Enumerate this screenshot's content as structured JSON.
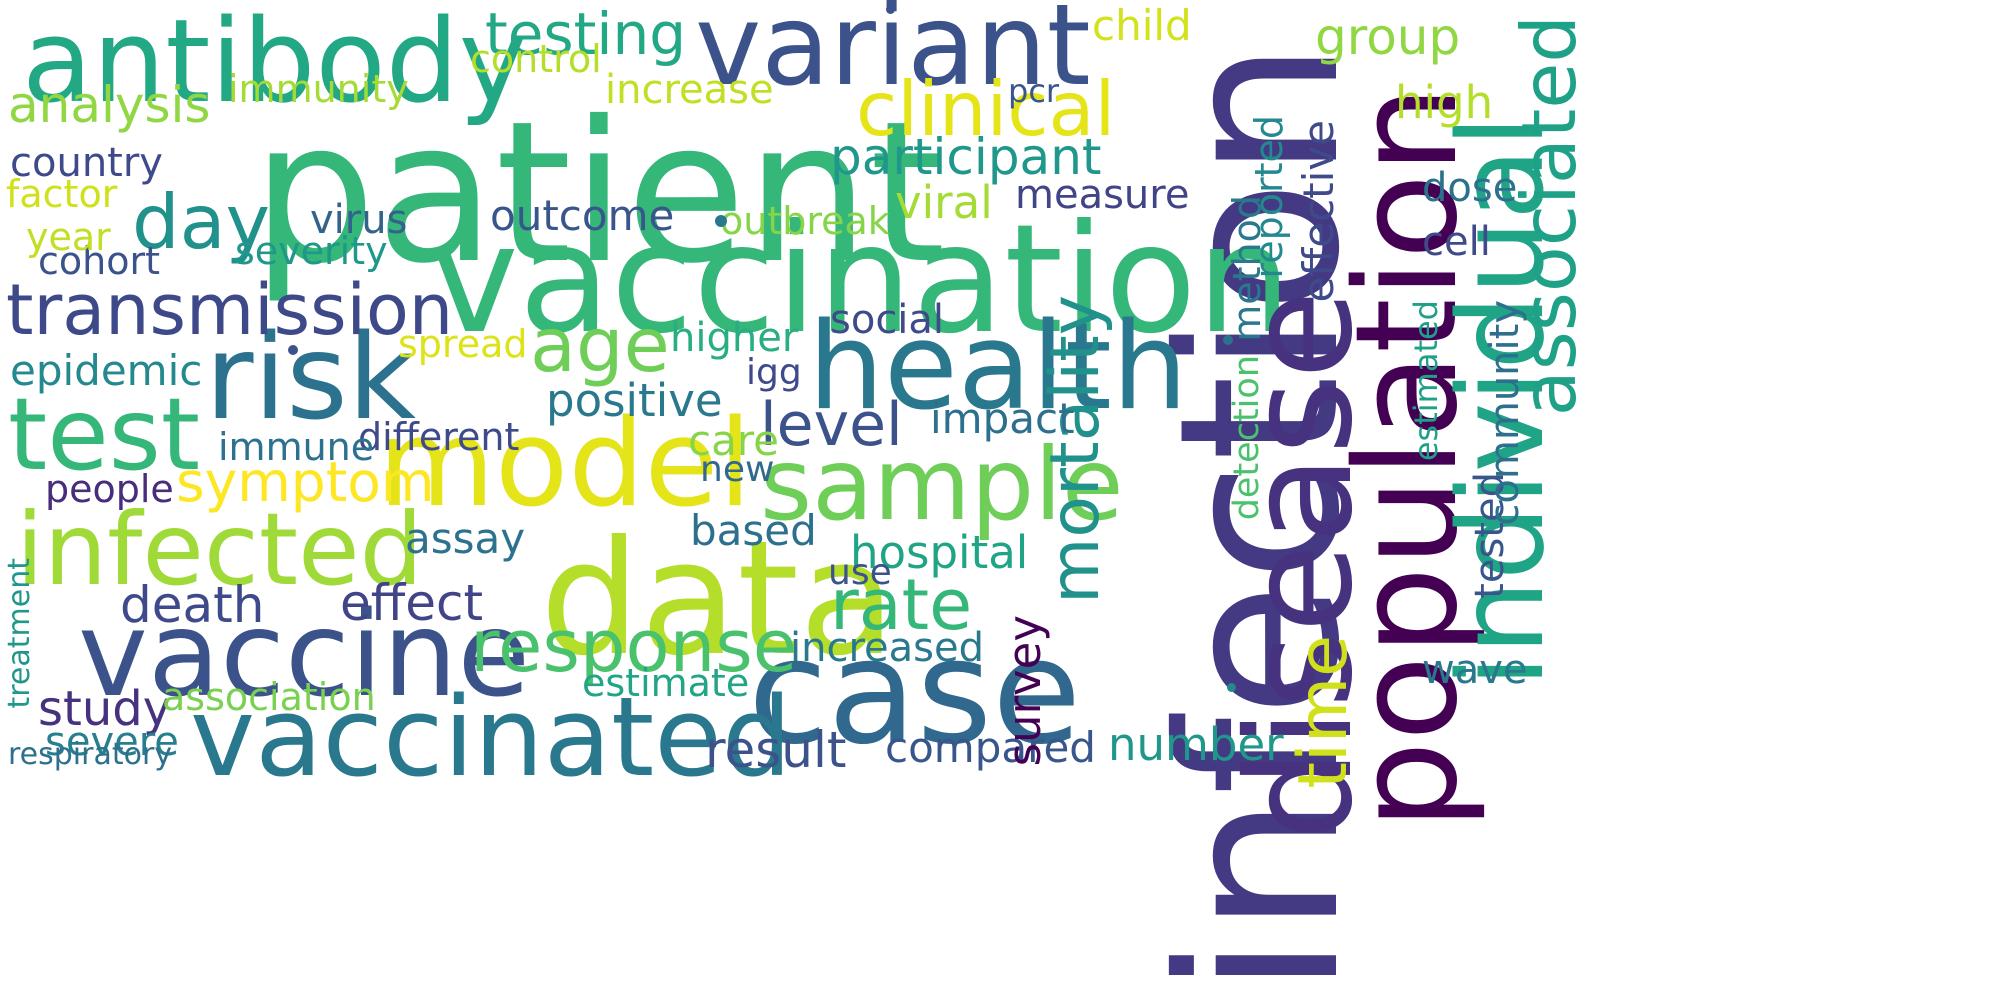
{
  "word_cloud": {
    "words": [
      {
        "text": "patient",
        "color": "#35b779"
      },
      {
        "text": "infection",
        "color": "#443a83"
      },
      {
        "text": "vaccination",
        "color": "#35b779"
      },
      {
        "text": "antibody",
        "color": "#22a884"
      },
      {
        "text": "variant",
        "color": "#3b528b"
      },
      {
        "text": "health",
        "color": "#2a788e"
      },
      {
        "text": "case",
        "color": "#31688e"
      },
      {
        "text": "data",
        "color": "#b5de2b"
      },
      {
        "text": "model",
        "color": "#e5e419"
      },
      {
        "text": "vaccine",
        "color": "#3b528b"
      },
      {
        "text": "vaccinated",
        "color": "#2a788e"
      },
      {
        "text": "infected",
        "color": "#a0da39"
      },
      {
        "text": "risk",
        "color": "#2c728e"
      },
      {
        "text": "test",
        "color": "#35b779"
      },
      {
        "text": "disease",
        "color": "#46327e"
      },
      {
        "text": "population",
        "color": "#440154"
      },
      {
        "text": "individual",
        "color": "#20a486"
      },
      {
        "text": "sample",
        "color": "#6ece58"
      },
      {
        "text": "transmission",
        "color": "#3e4989"
      },
      {
        "text": "associated",
        "color": "#1fa188"
      },
      {
        "text": "clinical",
        "color": "#e5e419"
      },
      {
        "text": "age",
        "color": "#6ece58"
      },
      {
        "text": "day",
        "color": "#21918c"
      },
      {
        "text": "testing",
        "color": "#22a884"
      },
      {
        "text": "analysis",
        "color": "#90d743"
      },
      {
        "text": "mortality",
        "color": "#21918c"
      },
      {
        "text": "level",
        "color": "#3b528b"
      },
      {
        "text": "rate",
        "color": "#35b779"
      },
      {
        "text": "response",
        "color": "#4ac16d"
      },
      {
        "text": "participant",
        "color": "#1f988b"
      },
      {
        "text": "time",
        "color": "#d0e11c"
      },
      {
        "text": "symptom",
        "color": "#fde725"
      },
      {
        "text": "death",
        "color": "#3e4a89"
      },
      {
        "text": "effect",
        "color": "#414487"
      },
      {
        "text": "study",
        "color": "#46327e"
      },
      {
        "text": "severe",
        "color": "#277f8e"
      },
      {
        "text": "association",
        "color": "#7ad151"
      },
      {
        "text": "result",
        "color": "#3b528b"
      },
      {
        "text": "compared",
        "color": "#39568c"
      },
      {
        "text": "number",
        "color": "#1f988b"
      },
      {
        "text": "hospital",
        "color": "#20a486"
      },
      {
        "text": "group",
        "color": "#90d743"
      },
      {
        "text": "control",
        "color": "#b5de2b"
      },
      {
        "text": "increase",
        "color": "#c2df23"
      },
      {
        "text": "immunity",
        "color": "#a5db36"
      },
      {
        "text": "country",
        "color": "#3e4a89"
      },
      {
        "text": "outcome",
        "color": "#39568c"
      },
      {
        "text": "viral",
        "color": "#a5db36"
      },
      {
        "text": "measure",
        "color": "#414487"
      },
      {
        "text": "virus",
        "color": "#33638d"
      },
      {
        "text": "severity",
        "color": "#1f988b"
      },
      {
        "text": "outbreak",
        "color": "#86d549"
      },
      {
        "text": "epidemic",
        "color": "#23898e"
      },
      {
        "text": "positive",
        "color": "#2a788e"
      },
      {
        "text": "different",
        "color": "#3e4a89"
      },
      {
        "text": "immune",
        "color": "#2c728e"
      },
      {
        "text": "care",
        "color": "#86d549"
      },
      {
        "text": "impact",
        "color": "#2d708e"
      },
      {
        "text": "higher",
        "color": "#28ae80"
      },
      {
        "text": "spread",
        "color": "#dde318"
      },
      {
        "text": "social",
        "color": "#3e4a89"
      },
      {
        "text": "people",
        "color": "#472d7b"
      },
      {
        "text": "assay",
        "color": "#2c728e"
      },
      {
        "text": "based",
        "color": "#2d708e"
      },
      {
        "text": "increased",
        "color": "#2a788e"
      },
      {
        "text": "estimate",
        "color": "#21a585"
      },
      {
        "text": "survey",
        "color": "#440154"
      },
      {
        "text": "vaccinated",
        "color": "#2a788e"
      },
      {
        "text": "cohort",
        "color": "#3b528b"
      },
      {
        "text": "factor",
        "color": "#d0e11c"
      },
      {
        "text": "year",
        "color": "#c2df23"
      },
      {
        "text": "dose",
        "color": "#2d708e"
      },
      {
        "text": "cell",
        "color": "#3e4a89"
      },
      {
        "text": "wave",
        "color": "#2a788e"
      },
      {
        "text": "high",
        "color": "#b5de2b"
      },
      {
        "text": "child",
        "color": "#d2e21b"
      },
      {
        "text": "reported",
        "color": "#23898e"
      },
      {
        "text": "effective",
        "color": "#3e4a89"
      },
      {
        "text": "method",
        "color": "#2a788e"
      },
      {
        "text": "detection",
        "color": "#4ac16d"
      },
      {
        "text": "estimated",
        "color": "#1fa188"
      },
      {
        "text": "tested",
        "color": "#39568c"
      },
      {
        "text": "community",
        "color": "#2d708e"
      },
      {
        "text": "new",
        "color": "#31688e"
      },
      {
        "text": "igg",
        "color": "#3e4a89"
      },
      {
        "text": "use",
        "color": "#3b528b"
      },
      {
        "text": "treatment",
        "color": "#1f988b"
      },
      {
        "text": "respiratory",
        "color": "#2d708e"
      },
      {
        "text": "pcr",
        "color": "#39568c"
      }
    ]
  }
}
